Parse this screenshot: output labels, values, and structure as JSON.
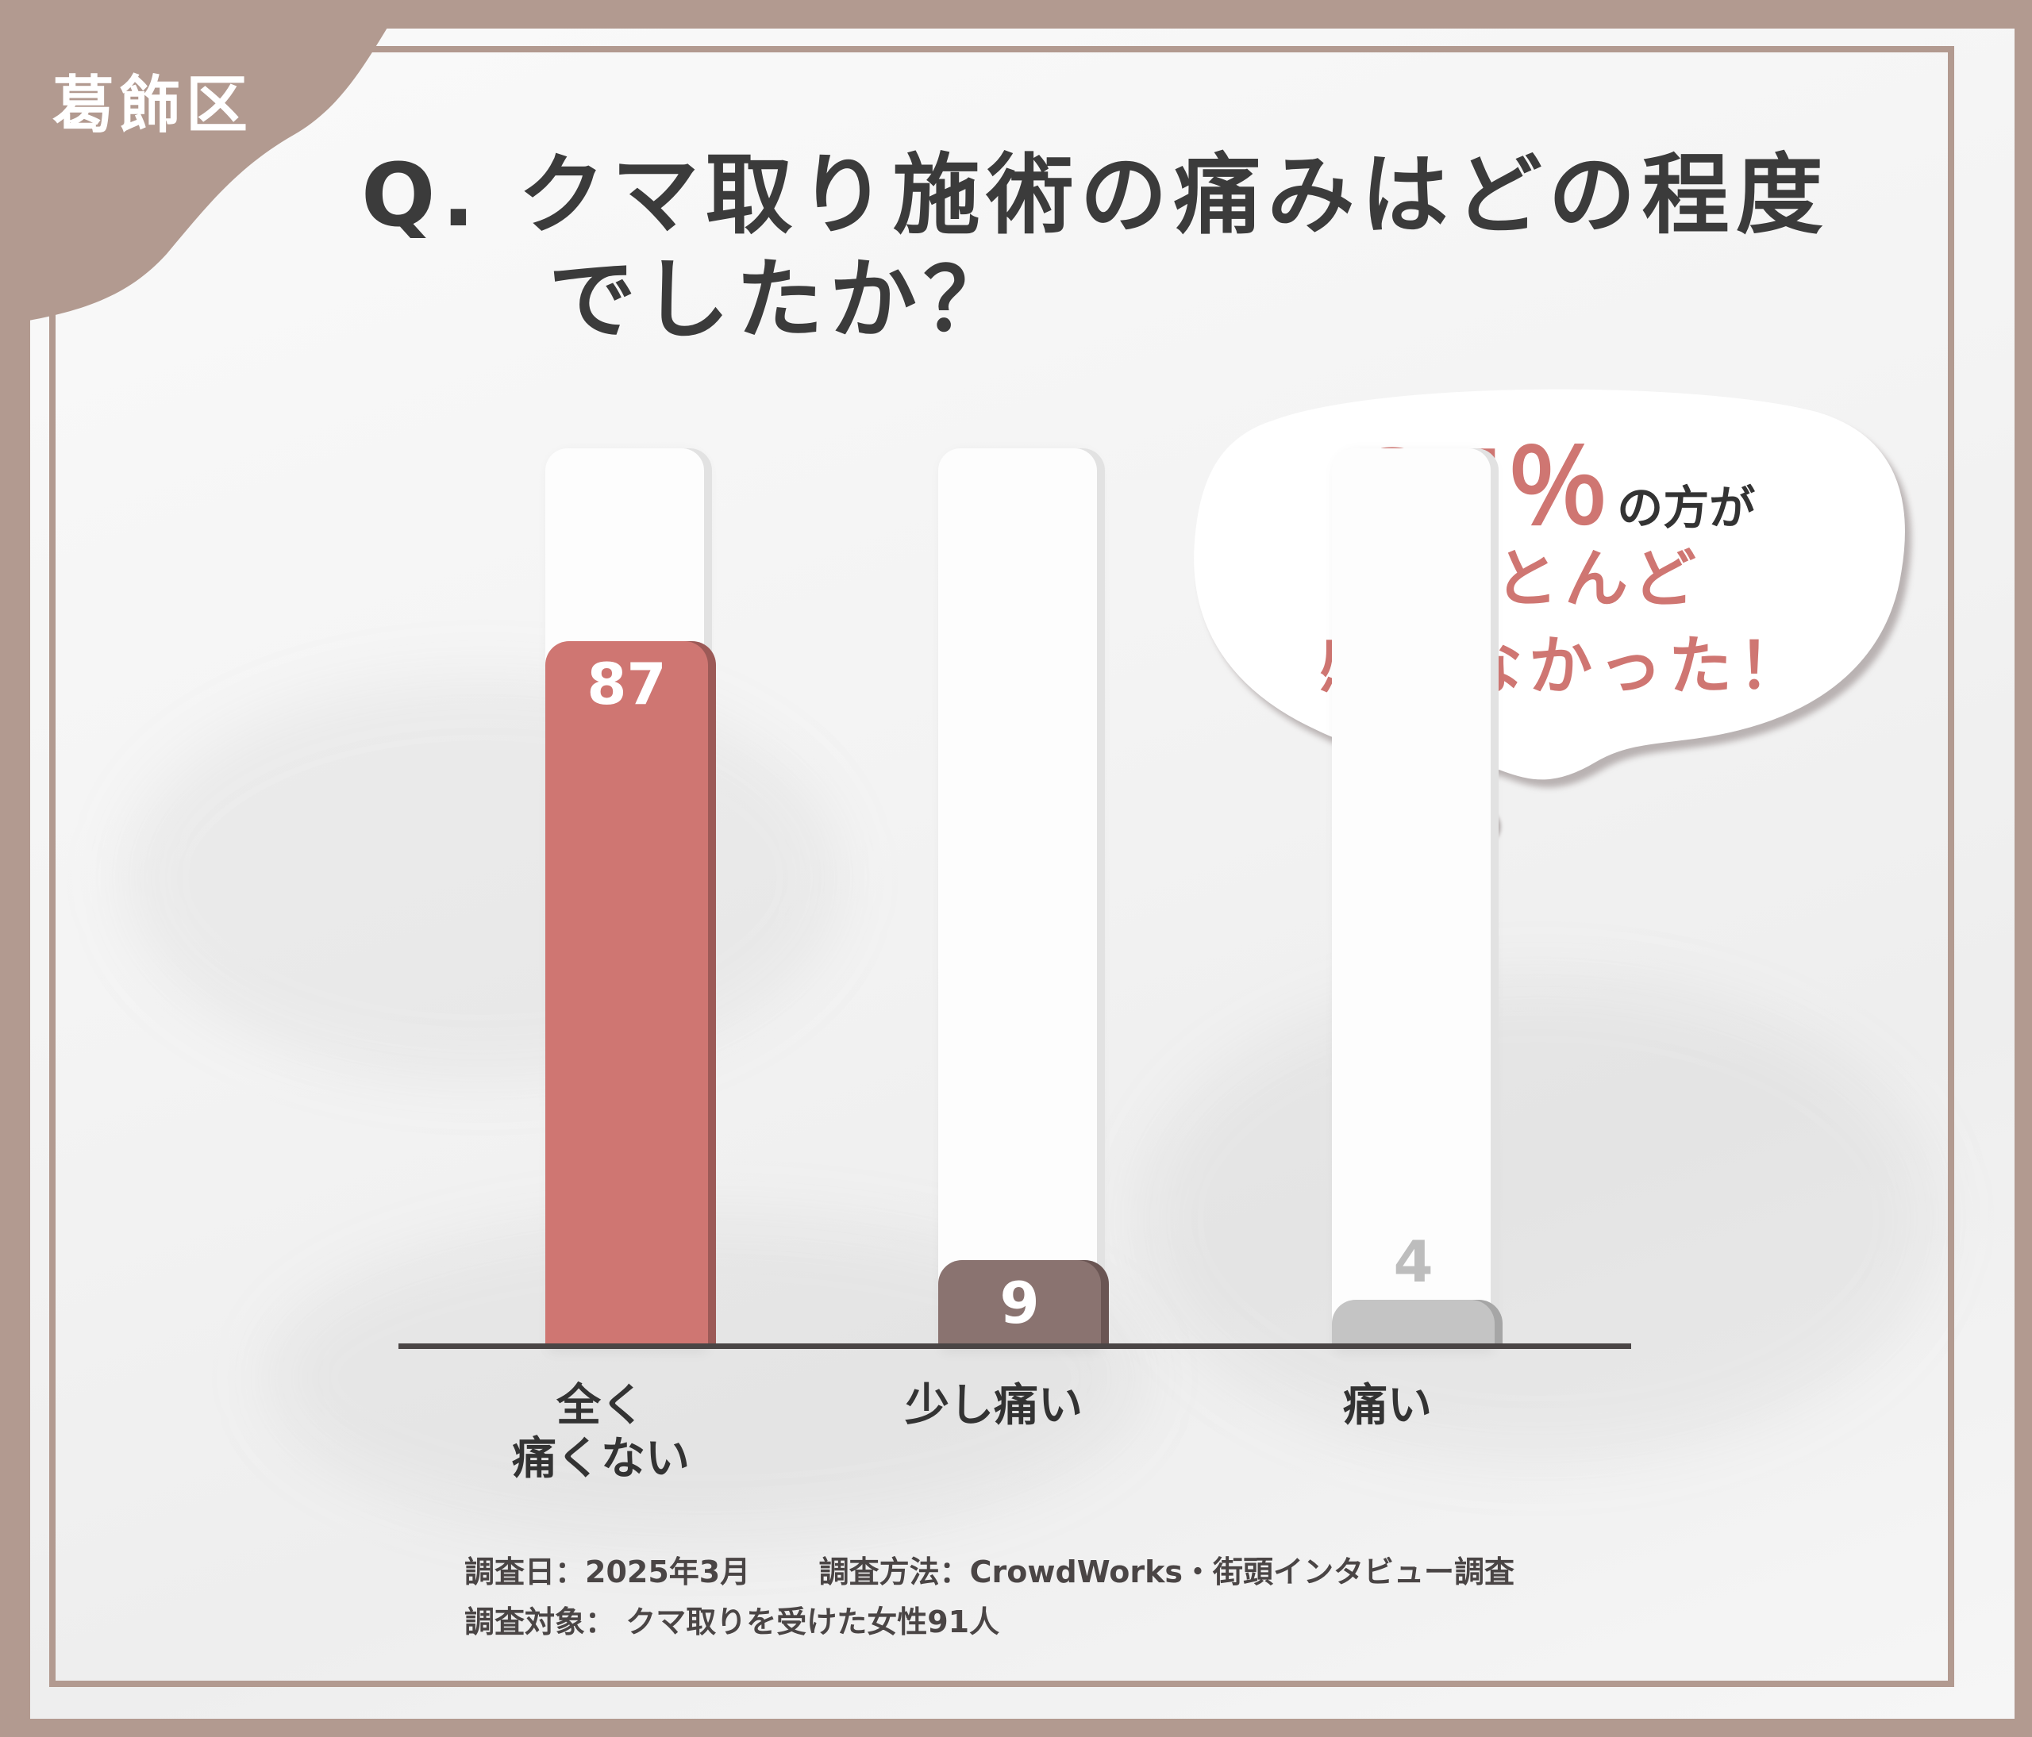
{
  "region": "葛飾区",
  "title": "Q. クマ取り施術の痛みはどの程度\n　　でしたか？",
  "callout": {
    "percent": "87％",
    "percent_suffix": "の方が",
    "line2": "ほとんど",
    "line3": "感じなかった！"
  },
  "chart_data": {
    "type": "bar",
    "categories": [
      "全く\n痛くない",
      "少し痛い",
      "痛い"
    ],
    "values": [
      87,
      9,
      4
    ],
    "value_labels": [
      "87",
      "9",
      "4"
    ],
    "ylim": [
      0,
      100
    ],
    "grid": false,
    "colors": [
      "#cf7672",
      "#8a7370",
      "#c4c4c4"
    ]
  },
  "footer": {
    "date": "調査日：2025年3月",
    "method": "調査方法：CrowdWorks・街頭インタビュー調査",
    "target": "調査対象：  クマ取りを受けた女性91人"
  }
}
